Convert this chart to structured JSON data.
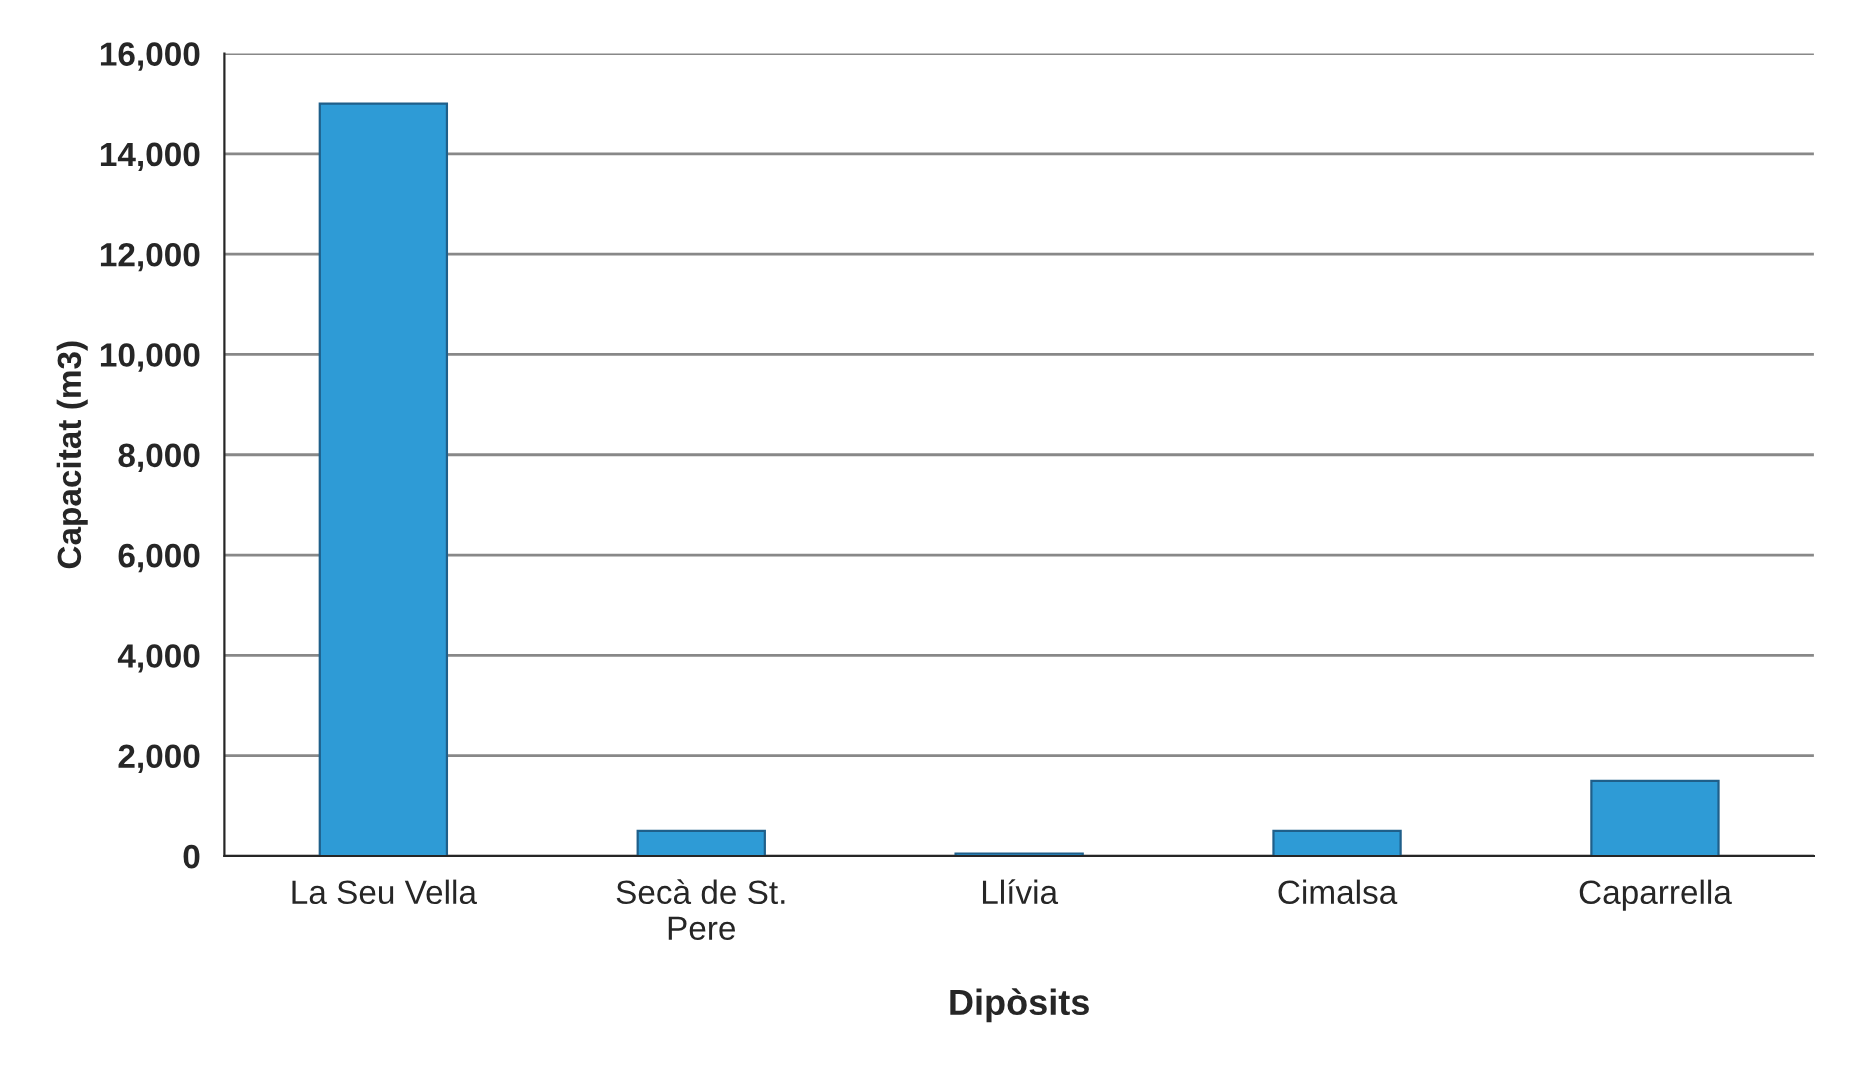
{
  "chart_data": {
    "type": "bar",
    "xlabel": "Dipòsits",
    "ylabel": "Capacitat (m3)",
    "categories": [
      "La Seu Vella",
      "Secà de St.\nPere",
      "Llívia",
      "Cimalsa",
      "Caparrella"
    ],
    "values": [
      15000,
      500,
      50,
      500,
      1500
    ],
    "color": "#2e9bd6",
    "ylim": [
      0,
      16000
    ],
    "yticks": [
      0,
      {
        "value": 2000,
        "label": "2,000"
      },
      {
        "value": 4000,
        "label": "4,000"
      },
      {
        "value": 6000,
        "label": "6,000"
      },
      {
        "value": 8000,
        "label": "8,000"
      },
      {
        "value": 10000,
        "label": "10,000"
      },
      {
        "value": 12000,
        "label": "12,000"
      },
      {
        "value": 14000,
        "label": "14,000"
      },
      {
        "value": 16000,
        "label": "16,000"
      }
    ],
    "grid": "y",
    "legend": false
  }
}
